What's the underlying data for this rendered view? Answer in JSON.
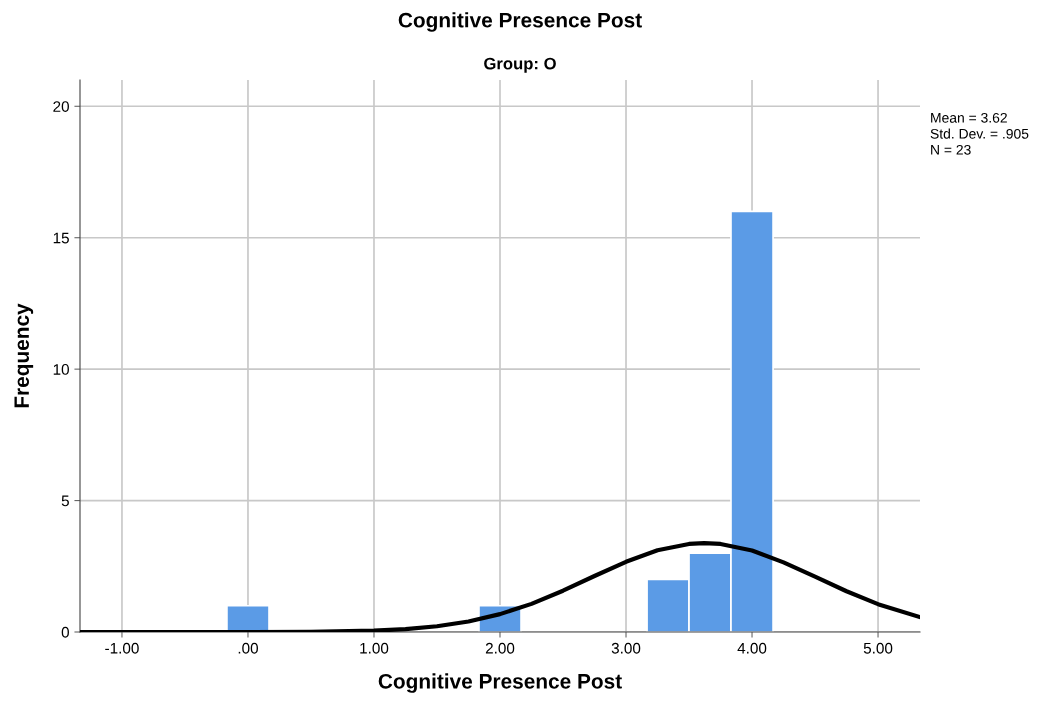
{
  "chart_data": {
    "type": "histogram",
    "title": "Cognitive Presence Post",
    "subtitle": "Group: O",
    "xlabel": "Cognitive Presence Post",
    "ylabel": "Frequency",
    "bins": [
      -0.167,
      0.167,
      0.5,
      0.833,
      1.167,
      1.5,
      1.833,
      2.167,
      2.5,
      2.833,
      3.167,
      3.5,
      3.833,
      4.167
    ],
    "values": [
      1,
      0,
      0,
      0,
      0,
      0,
      1,
      0,
      0,
      0,
      2,
      3,
      16
    ],
    "color": "#5b9be6",
    "series": [
      {
        "type": "line",
        "color": "#000000",
        "x": [
          -1.33,
          0.0,
          0.5,
          1.0,
          1.25,
          1.5,
          1.75,
          2.0,
          2.25,
          2.5,
          2.75,
          3.0,
          3.25,
          3.5,
          3.62,
          3.75,
          4.0,
          4.25,
          4.5,
          4.75,
          5.0,
          5.33
        ],
        "values": [
          0,
          0,
          0.01,
          0.05,
          0.11,
          0.22,
          0.4,
          0.68,
          1.07,
          1.57,
          2.13,
          2.67,
          3.11,
          3.35,
          3.38,
          3.35,
          3.1,
          2.65,
          2.11,
          1.55,
          1.06,
          0.57
        ]
      }
    ],
    "xlim": [
      -1.333,
      5.333
    ],
    "xticks": [
      {
        "value": -1,
        "label": "-1.00"
      },
      {
        "value": 0,
        "label": ".00"
      },
      {
        "value": 1,
        "label": "1.00"
      },
      {
        "value": 2,
        "label": "2.00"
      },
      {
        "value": 3,
        "label": "3.00"
      },
      {
        "value": 4,
        "label": "4.00"
      },
      {
        "value": 5,
        "label": "5.00"
      }
    ],
    "ylim": [
      0,
      21
    ],
    "yticks": [
      0,
      5,
      10,
      15,
      20
    ],
    "grid": true,
    "annotations": [
      "Mean = 3.62",
      "Std. Dev. = .905",
      "N = 23"
    ]
  }
}
